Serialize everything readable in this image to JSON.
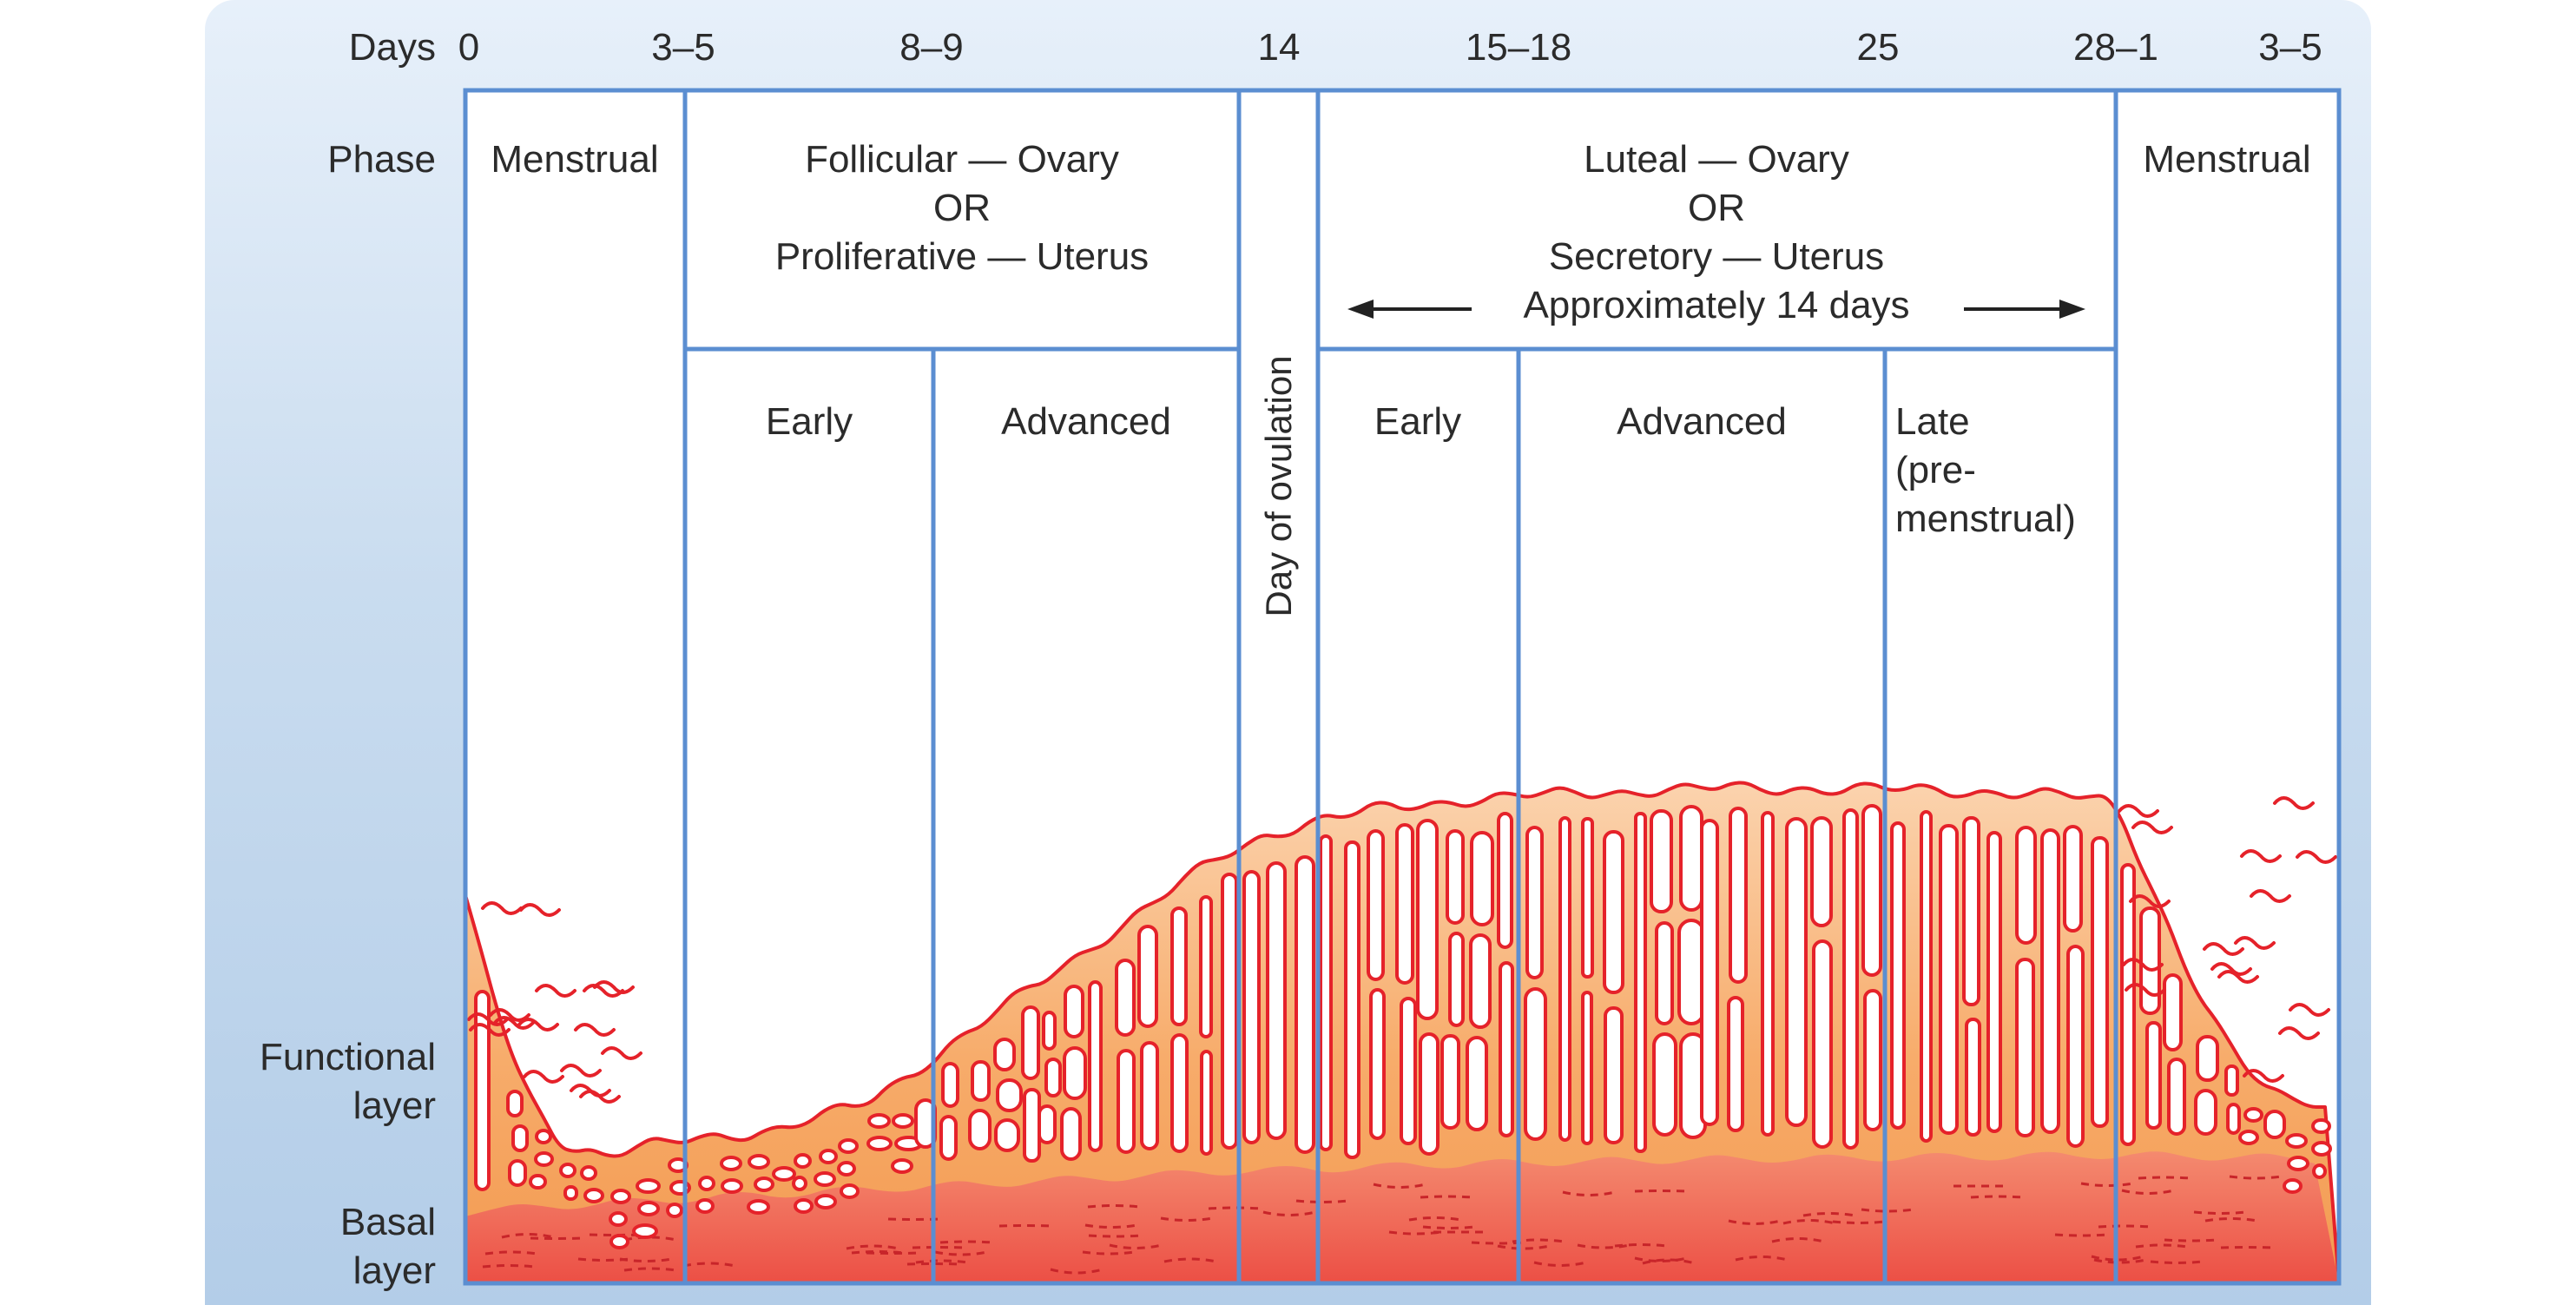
{
  "days_label": "Days",
  "days": [
    "0",
    "3–5",
    "8–9",
    "14",
    "15–18",
    "25",
    "28–1",
    "3–5"
  ],
  "phase_label": "Phase",
  "phases": {
    "menstrual_start": "Menstrual",
    "follicular": [
      "Follicular — Ovary",
      "OR",
      "Proliferative — Uterus"
    ],
    "luteal": [
      "Luteal — Ovary",
      "OR",
      "Secretory — Uterus"
    ],
    "luteal_duration": "Approximately 14 days",
    "ovulation": "Day of ovulation",
    "menstrual_end": "Menstrual"
  },
  "subphases": {
    "follicular_early": "Early",
    "follicular_advanced": "Advanced",
    "luteal_early": "Early",
    "luteal_advanced": "Advanced",
    "luteal_late": [
      "Late",
      "(pre-",
      "menstrual)"
    ]
  },
  "layers": {
    "functional": [
      "Functional",
      "layer"
    ],
    "basal": [
      "Basal",
      "layer"
    ]
  },
  "colors": {
    "grid_line": "#5b8ed1",
    "gland_outline": "#e5222a",
    "functional_fill": "#f6a25c",
    "basal_fill": "#ef5b4c"
  }
}
